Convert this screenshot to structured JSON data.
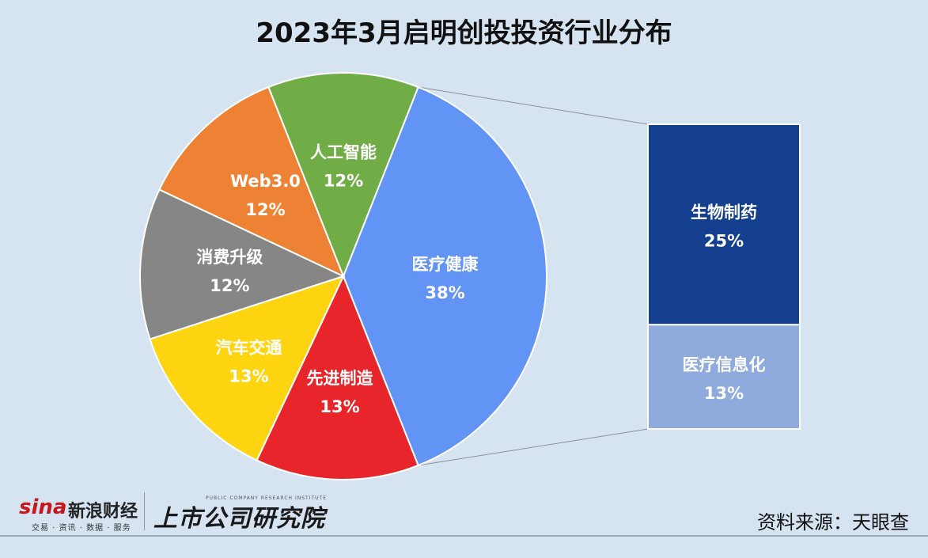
{
  "title": "2023年3月启明创投投资行业分布",
  "source": "资料来源：天眼查",
  "branding": {
    "sina_logo": "sina",
    "sina_name": "新浪财经",
    "sina_tagline": "交易 · 资讯 · 数据 · 服务",
    "lab_name_en": "PUBLIC COMPANY RESEARCH INSTITUTE",
    "lab_name": "上市公司研究院"
  },
  "colors": {
    "medical": "#6194f5",
    "auto": "#ffd411",
    "manufacturing": "#e8252a",
    "consumer": "#868686",
    "web3": "#ee8234",
    "ai": "#71ad47",
    "biopharma": "#143f8f",
    "medinfo": "#8faadc"
  },
  "chart_data": {
    "type": "pie",
    "subtype": "pie-of-bar",
    "slices": [
      {
        "label": "医疗健康",
        "value": 38,
        "display": "38%",
        "color": "#6194f5",
        "text_color": "#ffffff"
      },
      {
        "label": "先进制造",
        "value": 13,
        "display": "13%",
        "color": "#e8252a",
        "text_color": "#ffffff"
      },
      {
        "label": "汽车交通",
        "value": 13,
        "display": "13%",
        "color": "#ffd411",
        "text_color": "#ffffff"
      },
      {
        "label": "消费升级",
        "value": 12,
        "display": "12%",
        "color": "#868686",
        "text_color": "#ffffff"
      },
      {
        "label": "Web3.0",
        "value": 12,
        "display": "12%",
        "color": "#ee8234",
        "text_color": "#ffffff"
      },
      {
        "label": "人工智能",
        "value": 12,
        "display": "12%",
        "color": "#71ad47",
        "text_color": "#ffffff"
      }
    ],
    "breakdown": {
      "parent": "医疗健康",
      "items": [
        {
          "label": "生物制药",
          "value": 25,
          "display": "25%",
          "color": "#143f8f"
        },
        {
          "label": "医疗信息化",
          "value": 13,
          "display": "13%",
          "color": "#8faadc"
        }
      ]
    }
  }
}
